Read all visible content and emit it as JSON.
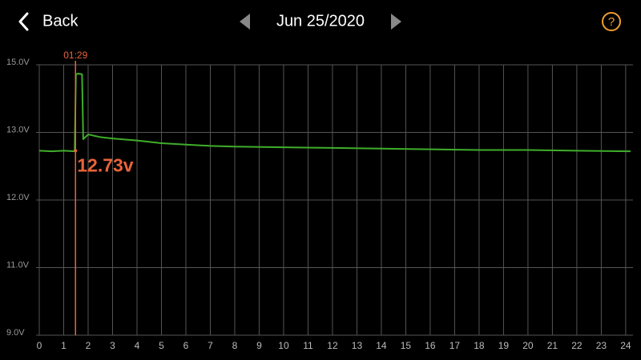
{
  "header": {
    "back": "Back",
    "date": "Jun 25/2020",
    "help": "?"
  },
  "chart_data": {
    "type": "line",
    "x": [
      0,
      0.5,
      1,
      1.45,
      1.5,
      1.6,
      1.75,
      1.8,
      2.0,
      2.5,
      3,
      4,
      5,
      6,
      7,
      8,
      10,
      12,
      14,
      16,
      18,
      20,
      22,
      24.2
    ],
    "series": [
      {
        "color": "#3fae2a",
        "values": [
          12.73,
          12.72,
          12.73,
          12.72,
          14.72,
          14.74,
          14.72,
          12.9,
          12.97,
          12.93,
          12.91,
          12.88,
          12.84,
          12.82,
          12.8,
          12.79,
          12.78,
          12.77,
          12.76,
          12.75,
          12.74,
          12.74,
          12.73,
          12.72
        ]
      }
    ],
    "xlim": [
      0,
      24.2
    ],
    "xticks": [
      0,
      1,
      2,
      3,
      4,
      5,
      6,
      7,
      8,
      9,
      10,
      11,
      12,
      13,
      14,
      15,
      16,
      17,
      18,
      19,
      20,
      21,
      22,
      23,
      24
    ],
    "ylim": [
      9,
      15
    ],
    "yticks": [
      {
        "value": 9,
        "label": "9.0V"
      },
      {
        "value": 11,
        "label": "11.0V"
      },
      {
        "value": 12,
        "label": "12.0V"
      },
      {
        "value": 13,
        "label": "13.0V"
      },
      {
        "value": 15,
        "label": "15.0V"
      }
    ],
    "yscale": "even-ticks",
    "grid": true,
    "marker": {
      "label": "01:29",
      "x": 1.4833,
      "value": 12.73,
      "value_label": "12.73v",
      "color": "#e8643a"
    }
  }
}
